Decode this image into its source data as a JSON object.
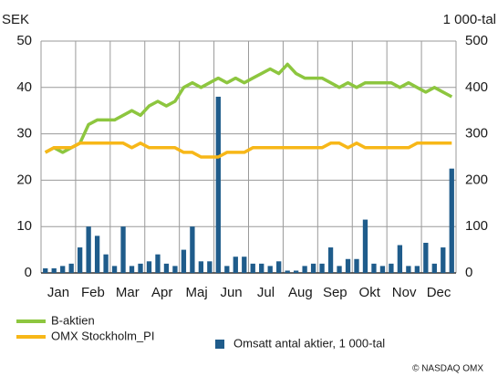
{
  "chart_data": {
    "type": "bar_line",
    "y_label": "SEK",
    "y2_label": "1 000-tal",
    "credit": "© NASDAQ OMX",
    "categories": [
      "Jan",
      null,
      null,
      null,
      "Feb",
      null,
      null,
      null,
      "Mar",
      null,
      null,
      null,
      "Apr",
      null,
      null,
      null,
      "Maj",
      null,
      null,
      null,
      "Jun",
      null,
      null,
      null,
      "Jul",
      null,
      null,
      null,
      "Aug",
      null,
      null,
      null,
      "Sep",
      null,
      null,
      null,
      "Okt",
      null,
      null,
      null,
      "Nov",
      null,
      null,
      null,
      "Dec",
      null,
      null,
      null
    ],
    "ylim": [
      0,
      50
    ],
    "yticks": [
      0,
      10,
      20,
      30,
      40,
      50
    ],
    "y2lim": [
      0,
      500
    ],
    "y2ticks": [
      0,
      100,
      200,
      300,
      400,
      500
    ],
    "grid": true,
    "series": [
      {
        "name": "B-aktien",
        "type": "line",
        "color": "#8dc63f",
        "values": [
          26,
          27,
          26,
          27,
          28,
          32,
          33,
          33,
          33,
          34,
          35,
          34,
          36,
          37,
          36,
          37,
          40,
          41,
          40,
          41,
          42,
          41,
          42,
          41,
          42,
          43,
          44,
          43,
          45,
          43,
          42,
          42,
          42,
          41,
          40,
          41,
          40,
          41,
          41,
          41,
          41,
          40,
          41,
          40,
          39,
          40,
          39,
          38
        ]
      },
      {
        "name": "OMX Stockholm_PI",
        "type": "line",
        "color": "#f7b718",
        "values": [
          26,
          27,
          27,
          27,
          28,
          28,
          28,
          28,
          28,
          28,
          27,
          28,
          27,
          27,
          27,
          27,
          26,
          26,
          25,
          25,
          25,
          26,
          26,
          26,
          27,
          27,
          27,
          27,
          27,
          27,
          27,
          27,
          27,
          28,
          28,
          27,
          28,
          27,
          27,
          27,
          27,
          27,
          27,
          28,
          28,
          28,
          28,
          28
        ]
      },
      {
        "name": "Omsatt antal aktier, 1 000-tal",
        "type": "bar",
        "axis": "y2",
        "color": "#1f5c8b",
        "values": [
          10,
          10,
          15,
          20,
          55,
          100,
          80,
          40,
          15,
          100,
          15,
          20,
          25,
          40,
          20,
          15,
          50,
          100,
          25,
          25,
          380,
          15,
          35,
          35,
          20,
          20,
          15,
          25,
          5,
          5,
          15,
          20,
          20,
          55,
          15,
          30,
          30,
          115,
          20,
          15,
          20,
          60,
          15,
          15,
          65,
          20,
          55,
          225
        ]
      }
    ]
  }
}
